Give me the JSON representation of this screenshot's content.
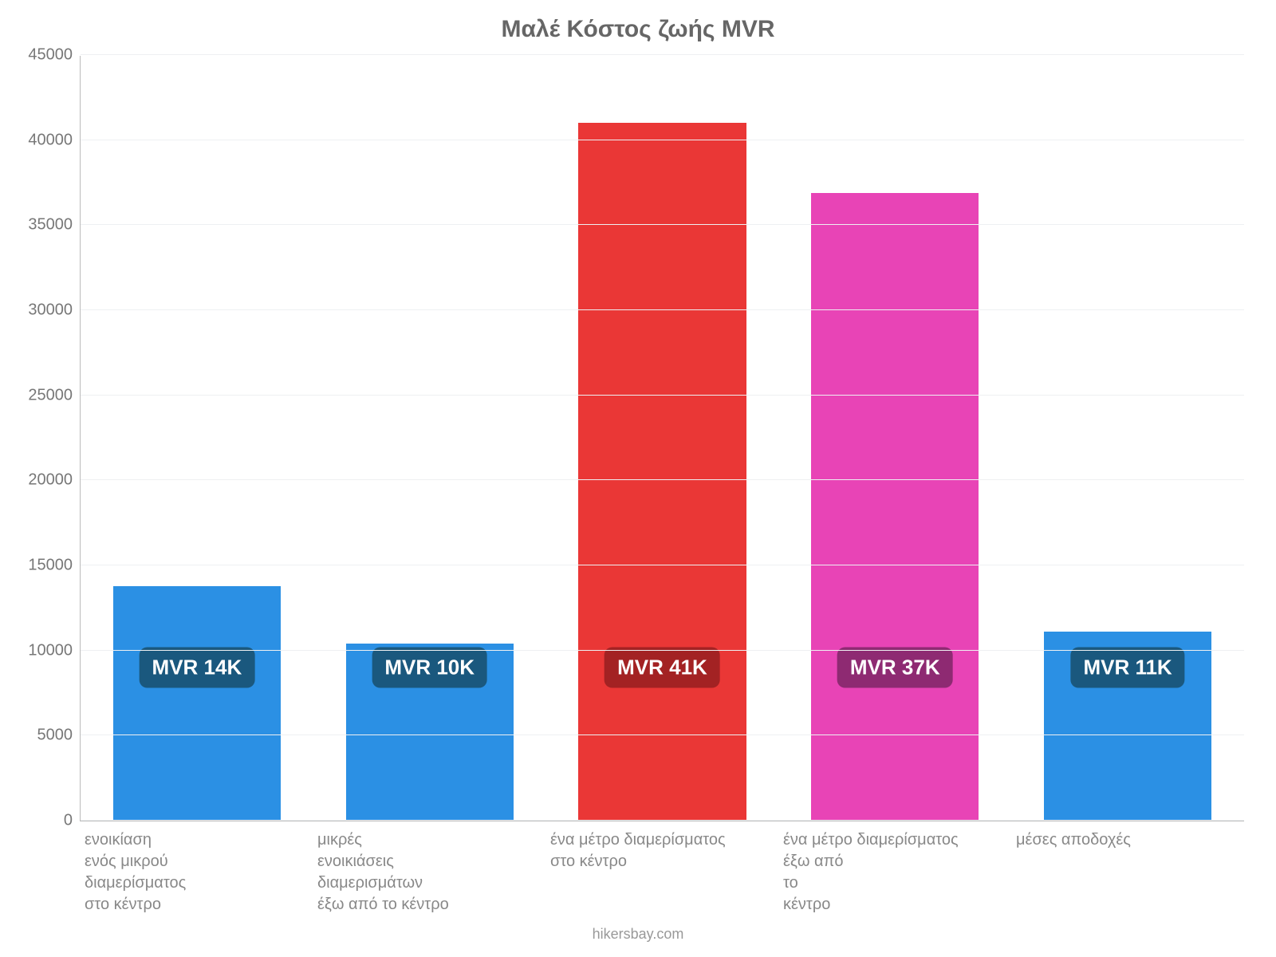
{
  "chart": {
    "type": "bar",
    "title": "Μαλέ Κόστος ζωής MVR",
    "title_color": "#666666",
    "title_fontsize": 30,
    "title_fontweight": "bold",
    "background_color": "#ffffff",
    "axis_line_color": "#bbbbbb",
    "grid_color": "#eef0f2",
    "ylim": [
      0,
      45000
    ],
    "ytick_step": 5000,
    "ytick_labels": [
      "0",
      "5000",
      "10000",
      "15000",
      "20000",
      "25000",
      "30000",
      "35000",
      "40000",
      "45000"
    ],
    "ytick_color": "#777777",
    "ytick_fontsize": 20,
    "bar_width": 0.72,
    "value_badge_fontsize": 26,
    "value_badge_radius": 10,
    "x_label_color": "#888888",
    "x_label_fontsize": 20,
    "credit_text": "hikersbay.com",
    "credit_color": "#999999",
    "credit_fontsize": 18,
    "categories": [
      "ενοικίαση\nενός μικρού\nδιαμερίσματος\nστο κέντρο",
      "μικρές\nενοικιάσεις\nδιαμερισμάτων\nέξω από το κέντρο",
      "ένα μέτρο διαμερίσματος\nστο κέντρο",
      "ένα μέτρο διαμερίσματος\nέξω από\nτο\nκέντρο",
      "μέσες αποδοχές"
    ],
    "values": [
      13800,
      10400,
      41000,
      36900,
      11100
    ],
    "value_labels": [
      "MVR 14K",
      "MVR 10K",
      "MVR 41K",
      "MVR 37K",
      "MVR 11K"
    ],
    "bar_colors": [
      "#2b90e4",
      "#2b90e4",
      "#ea3736",
      "#e844b6",
      "#2b90e4"
    ],
    "value_badge_bg": [
      "#1a587e",
      "#1a587e",
      "#a32223",
      "#8e2a72",
      "#1a587e"
    ]
  }
}
